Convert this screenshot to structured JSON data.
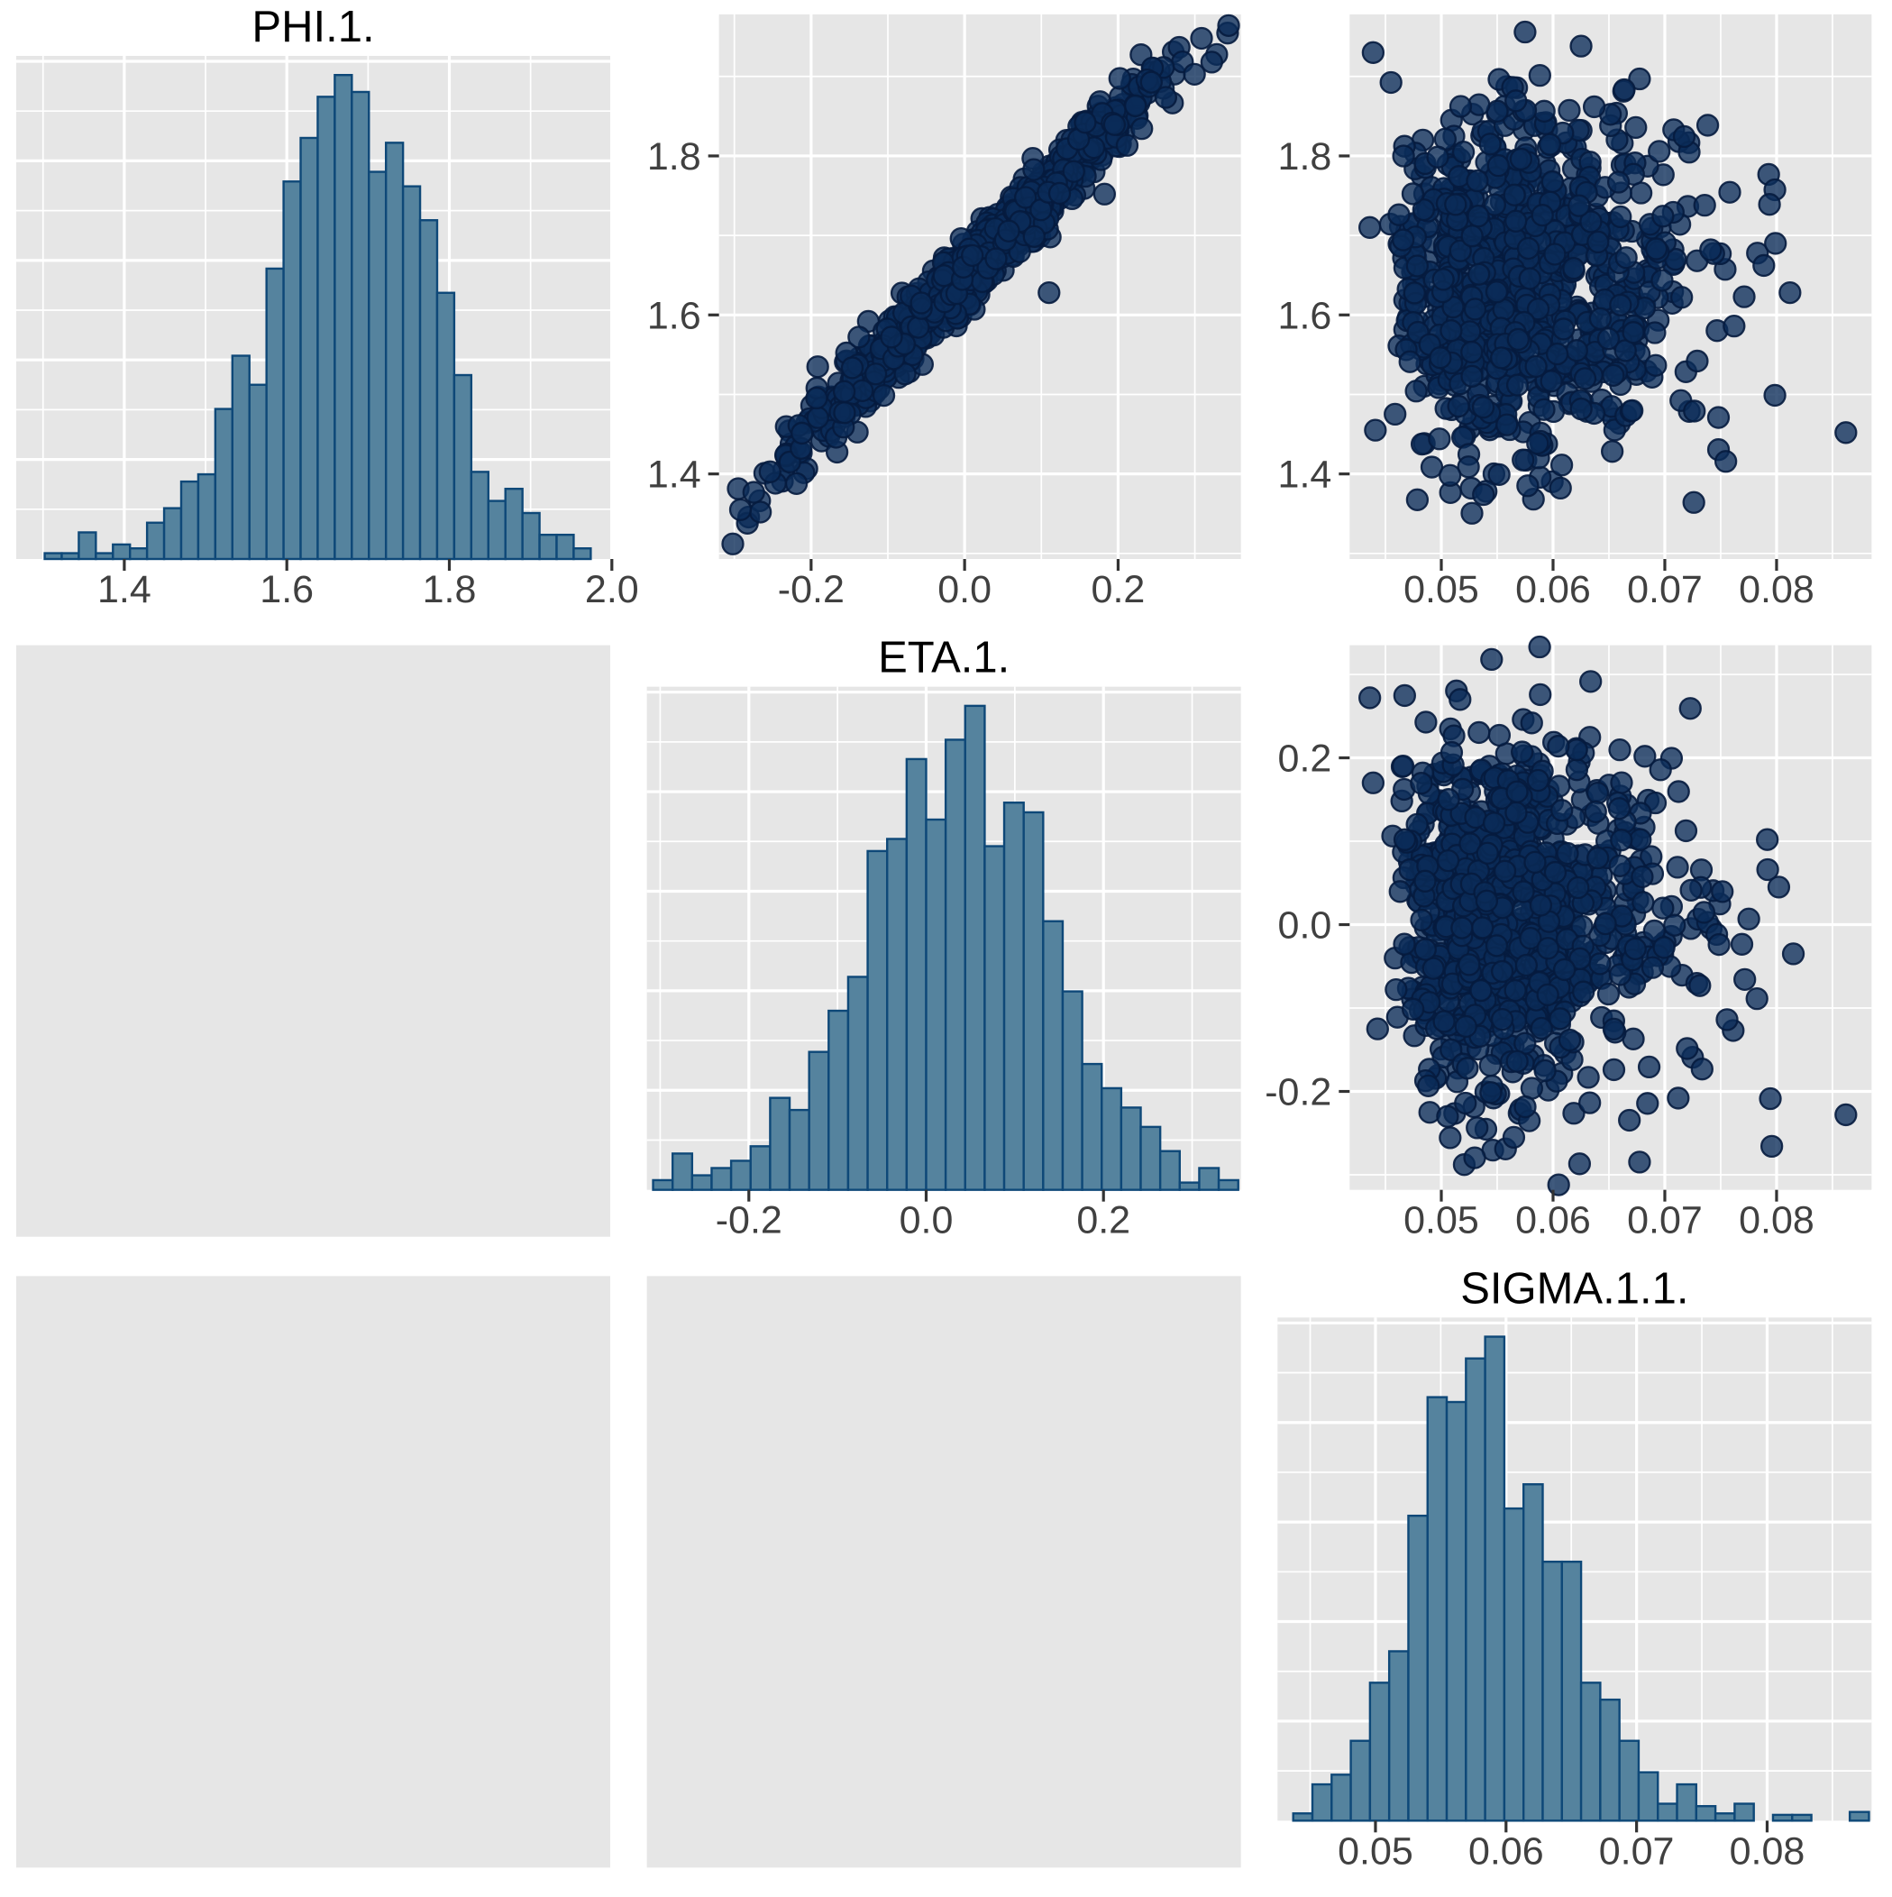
{
  "figure": {
    "kind": "mcmc-pairs-plot",
    "background": "#FFFFFF"
  },
  "style": {
    "panel_bg": "#E6E6E6",
    "grid_major": "#FFFFFF",
    "grid_minor": "#FFFFFF",
    "hist_fill": "#55839E",
    "hist_stroke": "#0E4878",
    "point_fill": "rgba(10,43,89,0.78)",
    "point_stroke": "rgba(5,27,62,0.9)",
    "tick_mark": "#333333",
    "label_color": "#404040",
    "title_color": "#000000"
  },
  "grid": {
    "rows": 3,
    "cols": 3,
    "empty_cells": [
      [
        1,
        0
      ],
      [
        2,
        0
      ],
      [
        2,
        1
      ]
    ]
  },
  "chart_data": [
    {
      "id": "phi_hist",
      "type": "bar",
      "subtype": "histogram",
      "row": 0,
      "col": 0,
      "title": "PHI.1.",
      "variable": "PHI.1.",
      "xlim": [
        1.267,
        1.998
      ],
      "x_ticks": [
        1.4,
        1.6,
        1.8,
        2.0
      ],
      "x_tick_labels": [
        "1.4",
        "1.6",
        "1.8",
        "2.0"
      ],
      "x_minor": [
        1.3,
        1.5,
        1.7,
        1.9
      ],
      "bin_start": 1.302,
      "bin_width": 0.021,
      "values": [
        0.012,
        0.012,
        0.055,
        0.012,
        0.03,
        0.022,
        0.075,
        0.105,
        0.16,
        0.175,
        0.31,
        0.42,
        0.36,
        0.6,
        0.78,
        0.87,
        0.955,
        1.0,
        0.965,
        0.8,
        0.86,
        0.77,
        0.7,
        0.55,
        0.38,
        0.18,
        0.12,
        0.145,
        0.095,
        0.05,
        0.05,
        0.022
      ],
      "ylim_rel": [
        0,
        1
      ],
      "grid": true,
      "legend": "none"
    },
    {
      "id": "eta_hist",
      "type": "bar",
      "subtype": "histogram",
      "row": 1,
      "col": 1,
      "title": "ETA.1.",
      "variable": "ETA.1.",
      "xlim": [
        -0.315,
        0.355
      ],
      "x_ticks": [
        -0.2,
        0.0,
        0.2
      ],
      "x_tick_labels": [
        "-0.2",
        "0.0",
        "0.2"
      ],
      "x_minor": [
        -0.3,
        -0.1,
        0.1,
        0.3
      ],
      "bin_start": -0.308,
      "bin_width": 0.022,
      "values": [
        0.02,
        0.075,
        0.03,
        0.045,
        0.06,
        0.09,
        0.19,
        0.165,
        0.285,
        0.37,
        0.44,
        0.7,
        0.725,
        0.89,
        0.765,
        0.93,
        1.0,
        0.71,
        0.8,
        0.78,
        0.555,
        0.41,
        0.26,
        0.21,
        0.17,
        0.13,
        0.08,
        0.015,
        0.045,
        0.02
      ],
      "ylim_rel": [
        0,
        1
      ],
      "grid": true,
      "legend": "none"
    },
    {
      "id": "sigma_hist",
      "type": "bar",
      "subtype": "histogram",
      "row": 2,
      "col": 2,
      "title": "SIGMA.1.1.",
      "variable": "SIGMA.1.1.",
      "xlim": [
        0.0425,
        0.088
      ],
      "x_ticks": [
        0.05,
        0.06,
        0.07,
        0.08
      ],
      "x_tick_labels": [
        "0.05",
        "0.06",
        "0.07",
        "0.08"
      ],
      "x_minor": [
        0.045,
        0.055,
        0.065,
        0.075,
        0.085
      ],
      "bin_start": 0.0437,
      "bin_width": 0.00147,
      "values": [
        0.015,
        0.075,
        0.095,
        0.165,
        0.285,
        0.35,
        0.63,
        0.875,
        0.865,
        0.955,
        1.0,
        0.645,
        0.695,
        0.535,
        0.535,
        0.285,
        0.25,
        0.165,
        0.1,
        0.035,
        0.075,
        0.03,
        0.015,
        0.035,
        0.0,
        0.012,
        0.012,
        0.0,
        0.0,
        0.018
      ],
      "ylim_rel": [
        0,
        1
      ],
      "grid": true,
      "legend": "none"
    },
    {
      "id": "eta_phi_scatter",
      "type": "scatter",
      "row": 0,
      "col": 1,
      "x_var": "ETA.1.",
      "y_var": "PHI.1.",
      "xlim": [
        -0.32,
        0.36
      ],
      "ylim": [
        1.293,
        1.978
      ],
      "x_ticks": [
        -0.2,
        0.0,
        0.2
      ],
      "x_tick_labels": [
        "-0.2",
        "0.0",
        "0.2"
      ],
      "x_minor": [
        -0.3,
        -0.1,
        0.1,
        0.3
      ],
      "y_ticks": [
        1.4,
        1.6,
        1.8
      ],
      "y_tick_labels": [
        "1.4",
        "1.6",
        "1.8"
      ],
      "y_minor": [
        1.3,
        1.5,
        1.7,
        1.9
      ],
      "n_points": 980,
      "gen": {
        "kind": "correlated",
        "seed": 11,
        "x_mean": 0.018,
        "x_sd": 0.112,
        "x_clip": [
          -0.305,
          0.345
        ],
        "slope": 0.97,
        "intercept": 1.648,
        "noise_sd": 0.021,
        "y_clip": [
          1.302,
          1.968
        ]
      },
      "outliers": [
        [
          -0.302,
          1.312
        ],
        [
          -0.283,
          1.338
        ],
        [
          -0.266,
          1.352
        ],
        [
          -0.292,
          1.355
        ],
        [
          0.344,
          1.964
        ],
        [
          0.322,
          1.918
        ],
        [
          0.11,
          1.628
        ]
      ],
      "grid": true,
      "legend": "none"
    },
    {
      "id": "sigma_phi_scatter",
      "type": "scatter",
      "row": 0,
      "col": 2,
      "x_var": "SIGMA.1.1.",
      "y_var": "PHI.1.",
      "xlim": [
        0.0418,
        0.0885
      ],
      "ylim": [
        1.293,
        1.978
      ],
      "x_ticks": [
        0.05,
        0.06,
        0.07,
        0.08
      ],
      "x_tick_labels": [
        "0.05",
        "0.06",
        "0.07",
        "0.08"
      ],
      "x_minor": [
        0.045,
        0.055,
        0.065,
        0.075,
        0.085
      ],
      "y_ticks": [
        1.4,
        1.6,
        1.8
      ],
      "y_tick_labels": [
        "1.4",
        "1.6",
        "1.8"
      ],
      "y_minor": [
        1.3,
        1.5,
        1.7,
        1.9
      ],
      "n_points": 1000,
      "gen": {
        "kind": "skewcloud",
        "seed": 22,
        "x_shift": 0.0437,
        "x_scale": 0.00168,
        "x_df": 8,
        "x_clip": [
          0.0428,
          0.0805
        ],
        "y_mean": 1.642,
        "y_sd": 0.112,
        "y_clip": [
          1.312,
          1.962
        ]
      },
      "outliers": [
        [
          0.0862,
          1.452
        ],
        [
          0.0812,
          1.628
        ],
        [
          0.0799,
          1.69
        ],
        [
          0.0436,
          1.71
        ],
        [
          0.0439,
          1.93
        ],
        [
          0.0441,
          1.455
        ],
        [
          0.0762,
          1.586
        ],
        [
          0.0748,
          1.471
        ],
        [
          0.0729,
          1.542
        ],
        [
          0.0741,
          1.682
        ]
      ],
      "grid": true,
      "legend": "none"
    },
    {
      "id": "sigma_eta_scatter",
      "type": "scatter",
      "row": 1,
      "col": 2,
      "x_var": "SIGMA.1.1.",
      "y_var": "ETA.1.",
      "xlim": [
        0.0418,
        0.0885
      ],
      "ylim": [
        -0.318,
        0.335
      ],
      "x_ticks": [
        0.05,
        0.06,
        0.07,
        0.08
      ],
      "x_tick_labels": [
        "0.05",
        "0.06",
        "0.07",
        "0.08"
      ],
      "x_minor": [
        0.045,
        0.055,
        0.065,
        0.075,
        0.085
      ],
      "y_ticks": [
        -0.2,
        0.0,
        0.2
      ],
      "y_tick_labels": [
        "-0.2",
        "0.0",
        "0.2"
      ],
      "y_minor": [
        -0.3,
        -0.1,
        0.1,
        0.3
      ],
      "n_points": 1000,
      "gen": {
        "kind": "skewcloud",
        "seed": 33,
        "x_shift": 0.0437,
        "x_scale": 0.00168,
        "x_df": 8,
        "x_clip": [
          0.0428,
          0.0805
        ],
        "y_mean": 0.008,
        "y_sd": 0.108,
        "y_clip": [
          -0.302,
          0.325
        ]
      },
      "outliers": [
        [
          0.0862,
          -0.228
        ],
        [
          0.0815,
          -0.035
        ],
        [
          0.0802,
          0.045
        ],
        [
          0.0436,
          0.272
        ],
        [
          0.0439,
          0.17
        ],
        [
          0.0443,
          -0.125
        ],
        [
          0.0588,
          0.333
        ],
        [
          0.0605,
          -0.312
        ],
        [
          0.0545,
          0.318
        ],
        [
          0.0712,
          -0.208
        ]
      ],
      "grid": true,
      "legend": "none"
    }
  ]
}
